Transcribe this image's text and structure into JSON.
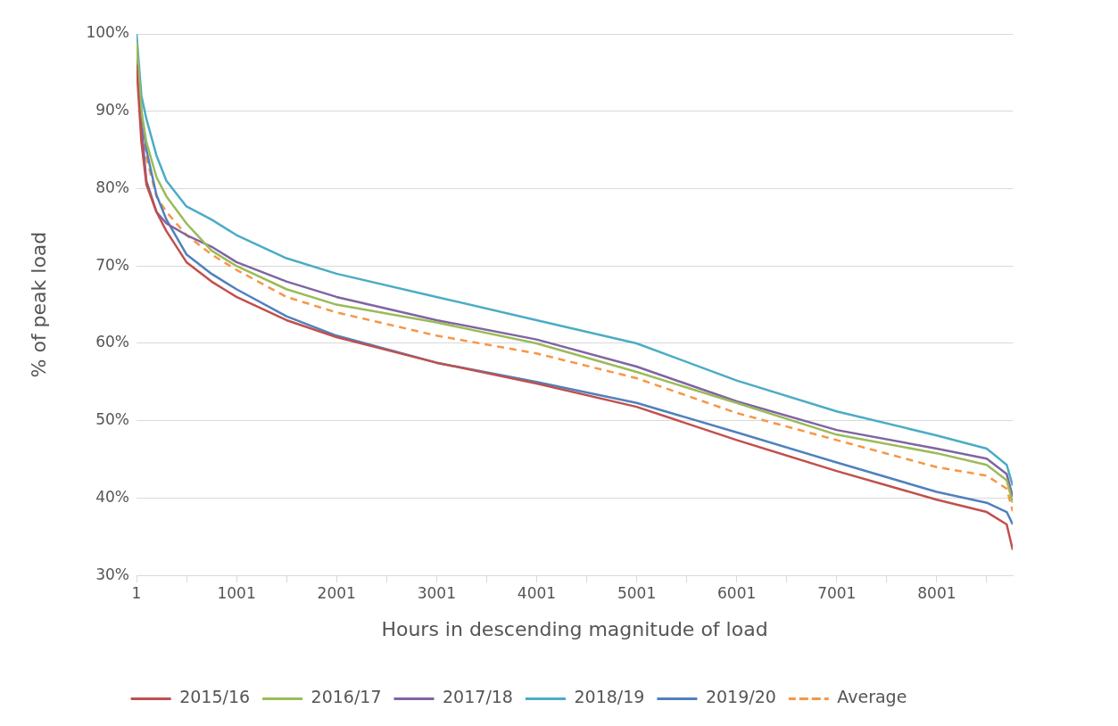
{
  "chart_data": {
    "type": "line",
    "xlabel": "Hours in descending magnitude of load",
    "ylabel": "% of peak load",
    "x": [
      1,
      50,
      100,
      200,
      300,
      500,
      750,
      1000,
      1500,
      2000,
      3000,
      4000,
      5000,
      6000,
      7000,
      8000,
      8500,
      8700,
      8760
    ],
    "series": [
      {
        "name": "2015/16",
        "color": "#c0504d",
        "values": [
          96,
          86,
          80.5,
          77,
          74.5,
          70.5,
          68,
          66,
          63,
          60.8,
          57.5,
          54.8,
          51.8,
          47.5,
          43.5,
          39.8,
          38.2,
          36.6,
          33.3
        ]
      },
      {
        "name": "2016/17",
        "color": "#9bbb59",
        "values": [
          99,
          90,
          86,
          81.5,
          79,
          75.5,
          72,
          70,
          67,
          65,
          62.7,
          60,
          56.3,
          52.3,
          48.2,
          45.8,
          44.3,
          42.3,
          39.4
        ]
      },
      {
        "name": "2017/18",
        "color": "#8064a2",
        "values": [
          98,
          88,
          81,
          77,
          75.5,
          74,
          72.5,
          70.5,
          68,
          66,
          63,
          60.5,
          57,
          52.5,
          48.8,
          46.4,
          45.1,
          43.1,
          40.2
        ]
      },
      {
        "name": "2018/19",
        "color": "#4bacc6",
        "values": [
          100,
          92,
          89,
          84.3,
          81,
          77.7,
          76,
          74,
          71,
          69,
          66,
          63,
          60,
          55.2,
          51.2,
          48.1,
          46.4,
          44.3,
          41.6
        ]
      },
      {
        "name": "2019/20",
        "color": "#4f81bd",
        "values": [
          99,
          90,
          85,
          79.2,
          76,
          71.5,
          69,
          67,
          63.5,
          61,
          57.5,
          55,
          52.3,
          48.5,
          44.6,
          40.8,
          39.4,
          38.2,
          36.6
        ]
      },
      {
        "name": "Average",
        "color": "#f79646",
        "line_style": "dashed",
        "values": [
          97,
          88,
          84,
          79,
          77,
          74,
          71.5,
          69.5,
          66,
          64,
          61,
          58.7,
          55.5,
          51,
          47.5,
          44,
          42.9,
          41.2,
          38.3
        ]
      }
    ],
    "xlim": [
      1,
      8760
    ],
    "xticks": [
      1,
      {
        "value": 501,
        "label": null
      },
      1001,
      {
        "value": 1501,
        "label": null
      },
      2001,
      {
        "value": 2501,
        "label": null
      },
      3001,
      {
        "value": 3501,
        "label": null
      },
      4001,
      {
        "value": 4501,
        "label": null
      },
      5001,
      {
        "value": 5501,
        "label": null
      },
      6001,
      {
        "value": 6501,
        "label": null
      },
      7001,
      {
        "value": 7501,
        "label": null
      },
      8001,
      {
        "value": 8501,
        "label": null
      }
    ],
    "ylim": [
      30,
      100
    ],
    "yticks": [
      {
        "value": 30,
        "label": "30%"
      },
      {
        "value": 40,
        "label": "40%"
      },
      {
        "value": 50,
        "label": "50%"
      },
      {
        "value": 60,
        "label": "60%"
      },
      {
        "value": 70,
        "label": "70%"
      },
      {
        "value": 80,
        "label": "80%"
      },
      {
        "value": 90,
        "label": "90%"
      },
      {
        "value": 100,
        "label": "100%"
      }
    ],
    "grid": "y",
    "legend": "bottom",
    "marker": "none",
    "line_style": "solid"
  }
}
